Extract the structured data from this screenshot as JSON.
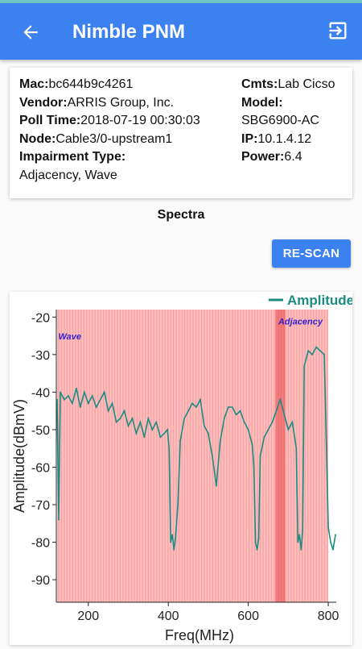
{
  "app": {
    "title": "Nimble PNM"
  },
  "info": {
    "mac_label": "Mac:",
    "mac": "bc644b9c4261",
    "vendor_label": "Vendor:",
    "vendor": "ARRIS Group, Inc.",
    "poll_label": "Poll Time:",
    "poll": "2018-07-19 00:30:03",
    "node_label": "Node:",
    "node": "Cable3/0-upstream1",
    "impairment_label": "Impairment Type:",
    "impairment": "Adjacency, Wave",
    "cmts_label": "Cmts:",
    "cmts": "Lab Cicso",
    "model_label": "Model:",
    "model": "SBG6900-AC",
    "ip_label": "IP:",
    "ip": "10.1.4.12",
    "power_label": "Power:",
    "power": "6.4"
  },
  "section_title": "Spectra",
  "rescan_label": "RE-SCAN",
  "colors": {
    "primary": "#3b82f0",
    "series": "#1a8c82",
    "impair": "#ffb0b0",
    "impair_dark": "#ee5a5a"
  },
  "chart_data": {
    "type": "line",
    "xlabel": "Freq(MHz)",
    "ylabel": "Amplitude(dBmV)",
    "xlim": [
      120,
      820
    ],
    "ylim": [
      -96,
      -18
    ],
    "xticks": [
      "200",
      "400",
      "600",
      "800"
    ],
    "xtick_values": [
      200,
      400,
      600,
      800
    ],
    "yticks": [
      "-20",
      "-30",
      "-40",
      "-50",
      "-60",
      "-70",
      "-80",
      "-90"
    ],
    "ytick_values": [
      -20,
      -30,
      -40,
      -50,
      -60,
      -70,
      -80,
      -90
    ],
    "legend": "Amplitude",
    "legend_position": "top-right",
    "annotations": [
      {
        "text": "Wave",
        "x": 125,
        "y": -26
      },
      {
        "text": "Adjacency",
        "x": 675,
        "y": -22
      }
    ],
    "impairment_regions": [
      {
        "label": "Wave",
        "x0": 122,
        "x1": 650
      },
      {
        "label": "Adjacency",
        "x0": 650,
        "x1": 800
      },
      {
        "label": "Adjacency-peak",
        "x0": 668,
        "x1": 692
      }
    ],
    "series": [
      {
        "name": "Amplitude",
        "x": [
          122,
          126,
          130,
          140,
          150,
          160,
          170,
          180,
          190,
          200,
          210,
          220,
          230,
          240,
          250,
          260,
          270,
          280,
          290,
          300,
          310,
          320,
          330,
          340,
          350,
          360,
          370,
          380,
          390,
          398,
          402,
          406,
          410,
          414,
          418,
          424,
          430,
          440,
          450,
          460,
          470,
          480,
          490,
          500,
          510,
          520,
          530,
          540,
          550,
          560,
          570,
          580,
          590,
          600,
          610,
          614,
          618,
          622,
          626,
          630,
          640,
          650,
          660,
          670,
          680,
          690,
          700,
          710,
          716,
          720,
          724,
          728,
          732,
          736,
          740,
          750,
          760,
          770,
          780,
          790,
          800,
          806,
          812,
          818
        ],
        "y": [
          -42,
          -74,
          -40,
          -42,
          -41,
          -43,
          -39,
          -44,
          -40,
          -43,
          -41,
          -44,
          -42,
          -40,
          -45,
          -43,
          -48,
          -47,
          -45,
          -49,
          -47,
          -51,
          -48,
          -52,
          -47,
          -50,
          -48,
          -52,
          -51,
          -50,
          -55,
          -80,
          -78,
          -82,
          -79,
          -70,
          -53,
          -47,
          -45,
          -43,
          -44,
          -42,
          -49,
          -51,
          -57,
          -65,
          -53,
          -47,
          -44,
          -44,
          -46,
          -45,
          -48,
          -50,
          -54,
          -60,
          -80,
          -82,
          -79,
          -57,
          -52,
          -50,
          -48,
          -45,
          -42,
          -46,
          -50,
          -48,
          -52,
          -55,
          -80,
          -78,
          -82,
          -77,
          -33,
          -29,
          -30,
          -28,
          -29,
          -30,
          -76,
          -80,
          -82,
          -78
        ]
      }
    ]
  }
}
